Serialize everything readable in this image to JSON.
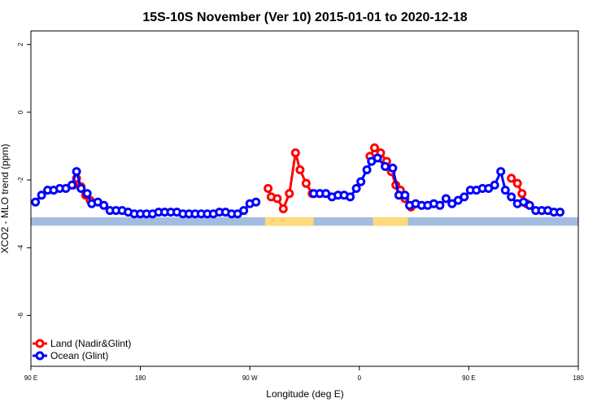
{
  "chart_data": {
    "type": "line",
    "title": "15S-10S November (Ver 10)   2015-01-01 to 2020-12-18",
    "xlabel": "Longitude (deg E)",
    "ylabel": "XCO2 - MLO trend (ppm)",
    "xlim": [
      0,
      360
    ],
    "ylim": [
      -7.5,
      2.4
    ],
    "x_ticks": [
      {
        "pos": 0,
        "label": "90 E"
      },
      {
        "pos": 72,
        "label": "180"
      },
      {
        "pos": 144,
        "label": "90 W"
      },
      {
        "pos": 216,
        "label": "0"
      },
      {
        "pos": 288,
        "label": "90 E"
      },
      {
        "pos": 360,
        "label": "180"
      }
    ],
    "y_ticks": [
      {
        "value": 2,
        "label": "2"
      },
      {
        "value": 0,
        "label": "0"
      },
      {
        "value": -2,
        "label": "-2"
      },
      {
        "value": -4,
        "label": "-4"
      },
      {
        "value": -6,
        "label": "-6"
      }
    ],
    "land_mask": {
      "y_range": [
        -3.35,
        -3.1
      ],
      "ocean_color": "#a3bde0",
      "land_color": "#ffd97a",
      "land_spans": [
        [
          154,
          186
        ],
        [
          225,
          248
        ]
      ]
    },
    "series": [
      {
        "name": "Land (Nadir&Glint)",
        "color": "#ff0000",
        "segments": [
          [
            [
              28,
              -2.15
            ],
            [
              30,
              -1.95
            ],
            [
              33,
              -2.2
            ],
            [
              36,
              -2.45
            ],
            [
              39,
              -2.6
            ]
          ],
          [
            [
              156,
              -2.25
            ],
            [
              158,
              -2.5
            ],
            [
              162,
              -2.55
            ],
            [
              166,
              -2.85
            ],
            [
              170,
              -2.4
            ],
            [
              174,
              -1.2
            ],
            [
              177,
              -1.7
            ],
            [
              181,
              -2.1
            ],
            [
              185,
              -2.4
            ]
          ],
          [
            [
              223,
              -1.3
            ],
            [
              226,
              -1.05
            ],
            [
              230,
              -1.2
            ],
            [
              234,
              -1.45
            ],
            [
              237,
              -1.75
            ],
            [
              240,
              -2.15
            ],
            [
              243,
              -2.3
            ],
            [
              246,
              -2.55
            ],
            [
              250,
              -2.8
            ]
          ],
          [
            [
              316,
              -1.95
            ],
            [
              320,
              -2.1
            ],
            [
              323,
              -2.4
            ],
            [
              326,
              -2.7
            ]
          ]
        ]
      },
      {
        "name": "Ocean (Glint)",
        "color": "#0000ff",
        "segments": [
          [
            [
              3,
              -2.65
            ],
            [
              7,
              -2.45
            ],
            [
              11,
              -2.3
            ],
            [
              15,
              -2.3
            ],
            [
              19,
              -2.25
            ],
            [
              23,
              -2.25
            ],
            [
              27,
              -2.15
            ],
            [
              30,
              -1.75
            ],
            [
              33,
              -2.25
            ],
            [
              37,
              -2.4
            ],
            [
              40,
              -2.7
            ],
            [
              44,
              -2.65
            ],
            [
              48,
              -2.75
            ],
            [
              52,
              -2.9
            ],
            [
              56,
              -2.9
            ],
            [
              60,
              -2.9
            ],
            [
              64,
              -2.95
            ],
            [
              68,
              -3.0
            ],
            [
              72,
              -3.0
            ],
            [
              76,
              -3.0
            ],
            [
              80,
              -3.0
            ],
            [
              84,
              -2.95
            ],
            [
              88,
              -2.95
            ],
            [
              92,
              -2.95
            ],
            [
              96,
              -2.95
            ],
            [
              100,
              -3.0
            ],
            [
              104,
              -3.0
            ],
            [
              108,
              -3.0
            ],
            [
              112,
              -3.0
            ],
            [
              116,
              -3.0
            ],
            [
              120,
              -3.0
            ],
            [
              124,
              -2.95
            ],
            [
              128,
              -2.95
            ],
            [
              132,
              -3.0
            ],
            [
              136,
              -3.0
            ],
            [
              140,
              -2.9
            ],
            [
              144,
              -2.7
            ],
            [
              148,
              -2.65
            ]
          ],
          [
            [
              186,
              -2.4
            ],
            [
              190,
              -2.4
            ],
            [
              194,
              -2.4
            ],
            [
              198,
              -2.5
            ],
            [
              202,
              -2.45
            ],
            [
              206,
              -2.45
            ],
            [
              210,
              -2.5
            ],
            [
              214,
              -2.25
            ],
            [
              217,
              -2.05
            ],
            [
              221,
              -1.7
            ],
            [
              224,
              -1.45
            ],
            [
              228,
              -1.35
            ],
            [
              233,
              -1.6
            ],
            [
              238,
              -1.65
            ],
            [
              242,
              -2.45
            ],
            [
              246,
              -2.45
            ],
            [
              249,
              -2.75
            ],
            [
              253,
              -2.7
            ],
            [
              257,
              -2.75
            ],
            [
              261,
              -2.75
            ],
            [
              265,
              -2.7
            ],
            [
              269,
              -2.75
            ],
            [
              273,
              -2.55
            ],
            [
              277,
              -2.7
            ],
            [
              281,
              -2.6
            ],
            [
              285,
              -2.5
            ],
            [
              289,
              -2.3
            ],
            [
              293,
              -2.3
            ],
            [
              297,
              -2.25
            ],
            [
              301,
              -2.25
            ],
            [
              305,
              -2.15
            ],
            [
              309,
              -1.75
            ],
            [
              312,
              -2.3
            ],
            [
              316,
              -2.5
            ],
            [
              320,
              -2.7
            ],
            [
              324,
              -2.65
            ],
            [
              328,
              -2.75
            ],
            [
              332,
              -2.9
            ],
            [
              336,
              -2.9
            ],
            [
              340,
              -2.9
            ],
            [
              344,
              -2.95
            ],
            [
              348,
              -2.95
            ]
          ]
        ]
      }
    ],
    "legend": {
      "placement": "bottom-left",
      "entries": [
        "Land (Nadir&Glint)",
        "Ocean (Glint)"
      ]
    }
  }
}
